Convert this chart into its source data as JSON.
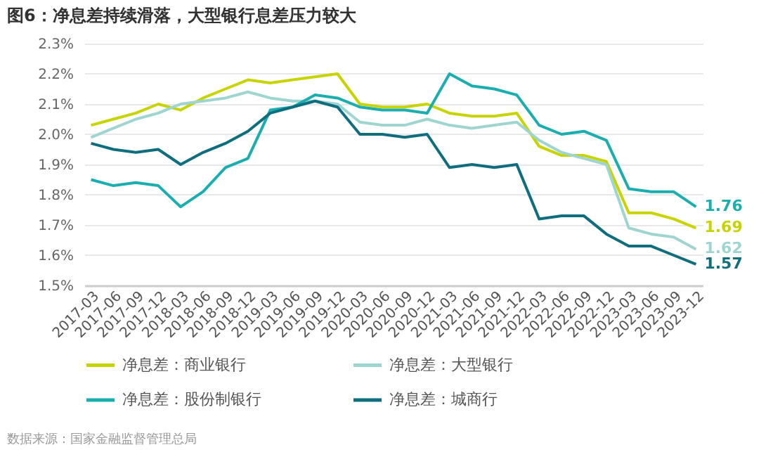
{
  "chart_data": {
    "type": "line",
    "title": "图6：净息差持续滑落，大型银行息差压力较大",
    "categories": [
      "2017-03",
      "2017-06",
      "2017-09",
      "2017-12",
      "2018-03",
      "2018-06",
      "2018-09",
      "2018-12",
      "2019-03",
      "2019-06",
      "2019-09",
      "2019-12",
      "2020-03",
      "2020-06",
      "2020-09",
      "2020-12",
      "2021-03",
      "2021-06",
      "2021-09",
      "2021-12",
      "2022-03",
      "2022-06",
      "2022-09",
      "2022-12",
      "2023-03",
      "2023-06",
      "2023-09",
      "2023-12"
    ],
    "series": [
      {
        "name": "净息差：商业银行",
        "color": "#c8d400",
        "values": [
          2.03,
          2.05,
          2.07,
          2.1,
          2.08,
          2.12,
          2.15,
          2.18,
          2.17,
          2.18,
          2.19,
          2.2,
          2.1,
          2.09,
          2.09,
          2.1,
          2.07,
          2.06,
          2.06,
          2.07,
          1.96,
          1.93,
          1.93,
          1.91,
          1.74,
          1.74,
          1.72,
          1.69
        ],
        "value_labels": [
          null,
          null,
          null,
          null,
          null,
          null,
          null,
          null,
          null,
          null,
          null,
          null,
          null,
          null,
          null,
          null,
          null,
          null,
          null,
          null,
          null,
          null,
          null,
          null,
          null,
          null,
          null,
          "1.69"
        ]
      },
      {
        "name": "净息差：大型银行",
        "color": "#9fd5d1",
        "values": [
          1.99,
          2.02,
          2.05,
          2.07,
          2.1,
          2.11,
          2.12,
          2.14,
          2.12,
          2.11,
          2.11,
          2.1,
          2.04,
          2.03,
          2.03,
          2.05,
          2.03,
          2.02,
          2.03,
          2.04,
          1.98,
          1.94,
          1.92,
          1.9,
          1.69,
          1.67,
          1.66,
          1.62
        ],
        "value_labels": [
          null,
          null,
          null,
          null,
          null,
          null,
          null,
          null,
          null,
          null,
          null,
          null,
          null,
          null,
          null,
          null,
          null,
          null,
          null,
          null,
          null,
          null,
          null,
          null,
          null,
          null,
          null,
          "1.62"
        ]
      },
      {
        "name": "净息差：股份制银行",
        "color": "#1aaeb0",
        "values": [
          1.85,
          1.83,
          1.84,
          1.83,
          1.76,
          1.81,
          1.89,
          1.92,
          2.08,
          2.09,
          2.13,
          2.12,
          2.09,
          2.08,
          2.08,
          2.07,
          2.2,
          2.16,
          2.15,
          2.13,
          2.03,
          2.0,
          2.01,
          1.98,
          1.82,
          1.81,
          1.81,
          1.76
        ],
        "value_labels": [
          null,
          null,
          null,
          null,
          null,
          null,
          null,
          null,
          null,
          null,
          null,
          null,
          null,
          null,
          null,
          null,
          null,
          null,
          null,
          null,
          null,
          null,
          null,
          null,
          null,
          null,
          null,
          "1.76"
        ]
      },
      {
        "name": "净息差：城商行",
        "color": "#0e6e7e",
        "values": [
          1.97,
          1.95,
          1.94,
          1.95,
          1.9,
          1.94,
          1.97,
          2.01,
          2.07,
          2.09,
          2.11,
          2.09,
          2.0,
          2.0,
          1.99,
          2.0,
          1.89,
          1.9,
          1.89,
          1.9,
          1.72,
          1.73,
          1.73,
          1.67,
          1.63,
          1.63,
          1.6,
          1.57
        ],
        "value_labels": [
          null,
          null,
          null,
          null,
          null,
          null,
          null,
          null,
          null,
          null,
          null,
          null,
          null,
          null,
          null,
          null,
          null,
          null,
          null,
          null,
          null,
          null,
          null,
          null,
          null,
          null,
          null,
          "1.57"
        ]
      }
    ],
    "ylim": [
      1.5,
      2.3
    ],
    "yticks": [
      {
        "value": 1.5,
        "label": "1.5%"
      },
      {
        "value": 1.6,
        "label": "1.6%"
      },
      {
        "value": 1.7,
        "label": "1.7%"
      },
      {
        "value": 1.8,
        "label": "1.8%"
      },
      {
        "value": 1.9,
        "label": "1.9%"
      },
      {
        "value": 2.0,
        "label": "2.0%"
      },
      {
        "value": 2.1,
        "label": "2.1%"
      },
      {
        "value": 2.2,
        "label": "2.2%"
      },
      {
        "value": 2.3,
        "label": "2.3%"
      }
    ],
    "grid": "y",
    "legend": "bottom",
    "marker": "none",
    "line_style": "solid",
    "annotations": [
      "数据来源：国家金融监督管理总局"
    ]
  }
}
